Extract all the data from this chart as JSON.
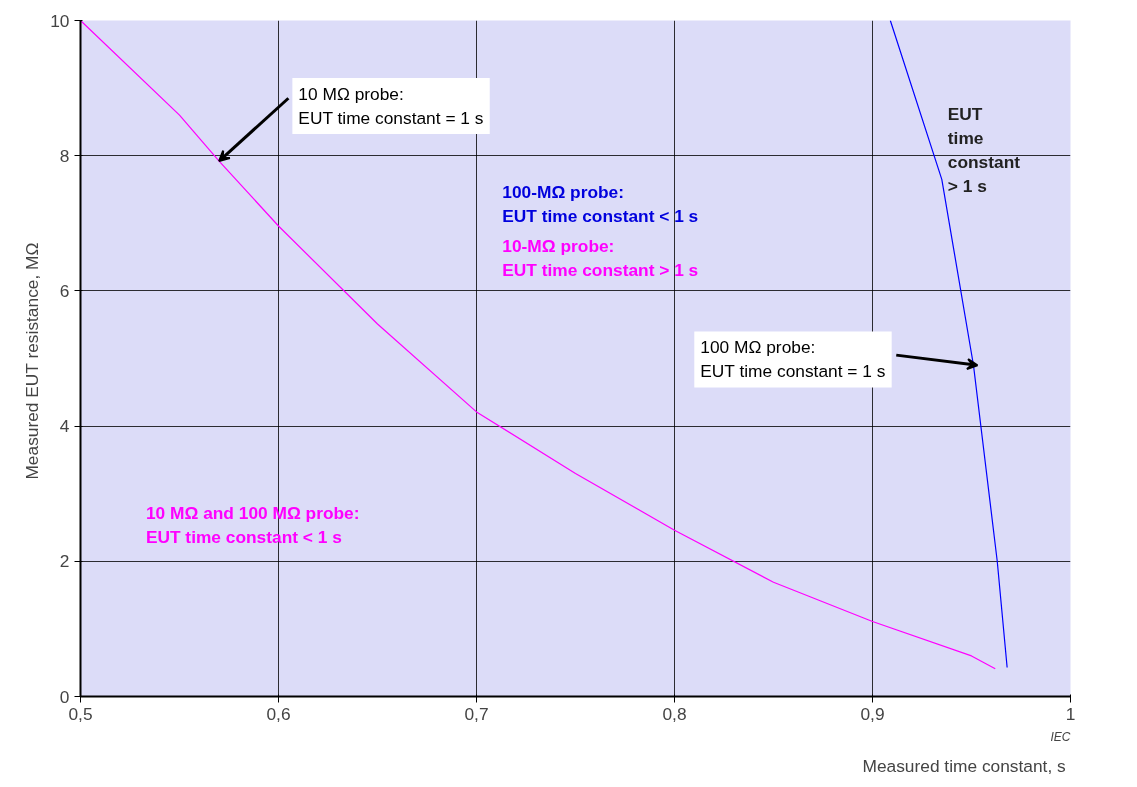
{
  "chart_data": {
    "type": "line",
    "xlabel": "Measured time constant,  s",
    "ylabel": "Measured EUT resistance,  MΩ",
    "xlim": [
      0.5,
      1.0
    ],
    "ylim": [
      0,
      10
    ],
    "xticks": [
      {
        "value": 0.5,
        "label": "0,5"
      },
      {
        "value": 0.6,
        "label": "0,6"
      },
      {
        "value": 0.7,
        "label": "0,7"
      },
      {
        "value": 0.8,
        "label": "0,8"
      },
      {
        "value": 0.9,
        "label": "0,9"
      },
      {
        "value": 1.0,
        "label": "1"
      }
    ],
    "yticks": [
      0,
      2,
      4,
      6,
      8,
      10
    ],
    "grid": true,
    "series": [
      {
        "color": "#ff00ff",
        "x": [
          0.5,
          0.55,
          0.57,
          0.6,
          0.65,
          0.7,
          0.75,
          0.8,
          0.85,
          0.9,
          0.95,
          0.962
        ],
        "values": [
          10,
          8.6,
          7.92,
          6.96,
          5.51,
          4.21,
          3.3,
          2.46,
          1.69,
          1.11,
          0.6,
          0.41
        ]
      },
      {
        "color": "#0000ff",
        "x": [
          0.909,
          0.935,
          0.951,
          0.963,
          0.968
        ],
        "values": [
          10,
          7.65,
          4.9,
          2.0,
          0.43
        ]
      }
    ],
    "annotations": [
      {
        "text": "10 MΩ probe:\nEUT time constant = 1 s",
        "x": 0.57,
        "y": 7.92
      },
      "100-MΩ probe:\nEUT time constant < 1 s",
      "10-MΩ probe:\nEUT time constant > 1 s",
      "10 MΩ and 100 MΩ probe:\nEUT time constant < 1 s",
      "EUT\ntime\nconstant\n> 1 s",
      {
        "text": "100 MΩ probe:\nEUT time constant = 1 s",
        "x": 0.953,
        "y": 4.9
      },
      "IEC"
    ]
  }
}
